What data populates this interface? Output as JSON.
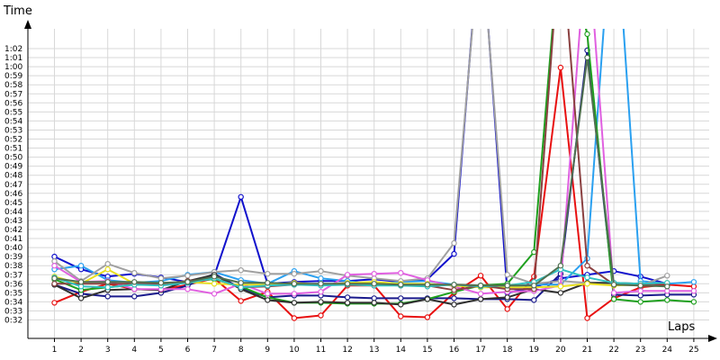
{
  "chart_data": {
    "type": "line",
    "ylabel": "Time",
    "xlabel": "Laps",
    "x": [
      1,
      2,
      3,
      4,
      5,
      6,
      7,
      8,
      9,
      10,
      11,
      12,
      13,
      14,
      15,
      16,
      17,
      18,
      19,
      20,
      21,
      22,
      23,
      24,
      25
    ],
    "yticks": [
      "0:32",
      "0:33",
      "0:34",
      "0:35",
      "0:36",
      "0:37",
      "0:38",
      "0:39",
      "0:40",
      "0:41",
      "0:42",
      "0:43",
      "0:44",
      "0:45",
      "0:46",
      "0:47",
      "0:48",
      "0:49",
      "0:50",
      "0:51",
      "0:52",
      "0:53",
      "0:54",
      "0:55",
      "0:56",
      "0:57",
      "0:58",
      "0:59",
      "1:00",
      "1:01",
      "1:02"
    ],
    "ylim_seconds": [
      31,
      63.5
    ],
    "grid": true,
    "series": [
      {
        "color": "#e81010",
        "values": [
          33.9,
          35.1,
          36.0,
          35.4,
          35.3,
          35.9,
          36.6,
          34.1,
          35.1,
          32.2,
          32.5,
          35.8,
          35.8,
          32.4,
          32.3,
          35.0,
          36.9,
          33.2,
          36.8,
          59.9,
          32.2,
          34.4,
          35.6,
          35.9,
          35.7
        ]
      },
      {
        "color": "#1010cc",
        "values": [
          39.0,
          37.6,
          36.8,
          37.1,
          36.7,
          36.2,
          36.9,
          45.6,
          36.0,
          36.2,
          36.3,
          36.3,
          36.5,
          36.2,
          36.5,
          39.3,
          76.0,
          35.0,
          35.6,
          36.6,
          37.0,
          37.4,
          36.8,
          36.0,
          null
        ]
      },
      {
        "color": "#1a1a8c",
        "values": [
          35.9,
          34.9,
          34.6,
          34.6,
          35.0,
          35.8,
          37.1,
          35.5,
          34.5,
          34.7,
          34.7,
          34.5,
          34.4,
          34.4,
          34.4,
          34.4,
          34.3,
          34.3,
          34.2,
          37.1,
          61.8,
          34.8,
          34.7,
          34.8,
          34.8
        ]
      },
      {
        "color": "#2aa0f0",
        "values": [
          37.6,
          38.0,
          36.4,
          36.1,
          36.3,
          37.0,
          37.3,
          36.4,
          36.0,
          37.4,
          36.6,
          36.3,
          35.9,
          36.2,
          36.3,
          35.9,
          35.6,
          35.7,
          35.9,
          35.9,
          38.8,
          80.0,
          36.3,
          36.0,
          36.2
        ]
      },
      {
        "color": "#1fa01f",
        "values": [
          36.5,
          35.3,
          35.6,
          35.9,
          35.9,
          36.3,
          36.5,
          35.7,
          34.5,
          33.9,
          33.9,
          33.8,
          33.8,
          33.8,
          34.3,
          35.1,
          35.8,
          36.0,
          39.5,
          75.0,
          63.6,
          34.3,
          34.0,
          34.2,
          34.0
        ]
      },
      {
        "color": "#a0a0a0",
        "values": [
          38.5,
          36.3,
          38.2,
          37.2,
          36.6,
          36.9,
          37.3,
          37.5,
          37.1,
          37.1,
          37.4,
          36.9,
          36.6,
          36.3,
          36.6,
          40.5,
          75.0,
          37.0,
          36.0,
          36.3,
          36.1,
          35.9,
          35.8,
          36.9,
          null
        ]
      },
      {
        "color": "#303030",
        "values": [
          35.9,
          34.4,
          35.3,
          35.4,
          35.3,
          36.3,
          37.0,
          35.4,
          34.2,
          33.9,
          34.0,
          33.9,
          33.9,
          33.7,
          34.3,
          33.7,
          34.3,
          34.5,
          35.4,
          35.0,
          36.1,
          36.1,
          36.0,
          36.0,
          null
        ]
      },
      {
        "color": "#e060e0",
        "values": [
          38.0,
          36.2,
          36.3,
          35.4,
          35.4,
          35.4,
          34.9,
          36.0,
          34.9,
          34.9,
          35.1,
          37.0,
          37.1,
          37.2,
          36.4,
          35.7,
          34.9,
          35.1,
          35.2,
          35.8,
          75.0,
          35.0,
          35.2,
          35.2,
          35.2
        ]
      },
      {
        "color": "#e8e020",
        "values": [
          36.8,
          36.0,
          37.6,
          36.0,
          35.9,
          36.2,
          36.0,
          35.9,
          35.9,
          36.1,
          35.9,
          36.1,
          36.2,
          36.0,
          36.0,
          35.8,
          35.6,
          35.6,
          35.6,
          35.7,
          36.0,
          35.8,
          35.9,
          36.1,
          null
        ]
      },
      {
        "color": "#8a4040",
        "values": [
          36.0,
          36.0,
          36.0,
          36.0,
          36.0,
          36.3,
          36.6,
          35.6,
          35.7,
          35.9,
          35.9,
          35.9,
          35.9,
          35.8,
          35.8,
          35.3,
          35.8,
          35.4,
          35.4,
          75.0,
          38.0,
          35.9,
          35.9,
          36.0,
          null
        ]
      },
      {
        "color": "#30c0c0",
        "values": [
          36.7,
          35.7,
          35.6,
          35.9,
          35.8,
          36.1,
          36.6,
          35.6,
          35.8,
          35.9,
          35.8,
          35.9,
          35.8,
          35.8,
          35.7,
          35.9,
          35.7,
          35.8,
          36.2,
          37.6,
          36.7,
          36.1,
          36.0,
          36.1,
          null
        ]
      },
      {
        "color": "#507050",
        "values": [
          36.6,
          36.2,
          36.2,
          36.2,
          36.1,
          36.2,
          36.8,
          36.1,
          36.1,
          36.0,
          36.0,
          36.0,
          36.0,
          35.9,
          35.9,
          35.9,
          35.8,
          35.8,
          35.8,
          38.0,
          61.0,
          35.9,
          35.8,
          35.7,
          null
        ]
      }
    ]
  }
}
